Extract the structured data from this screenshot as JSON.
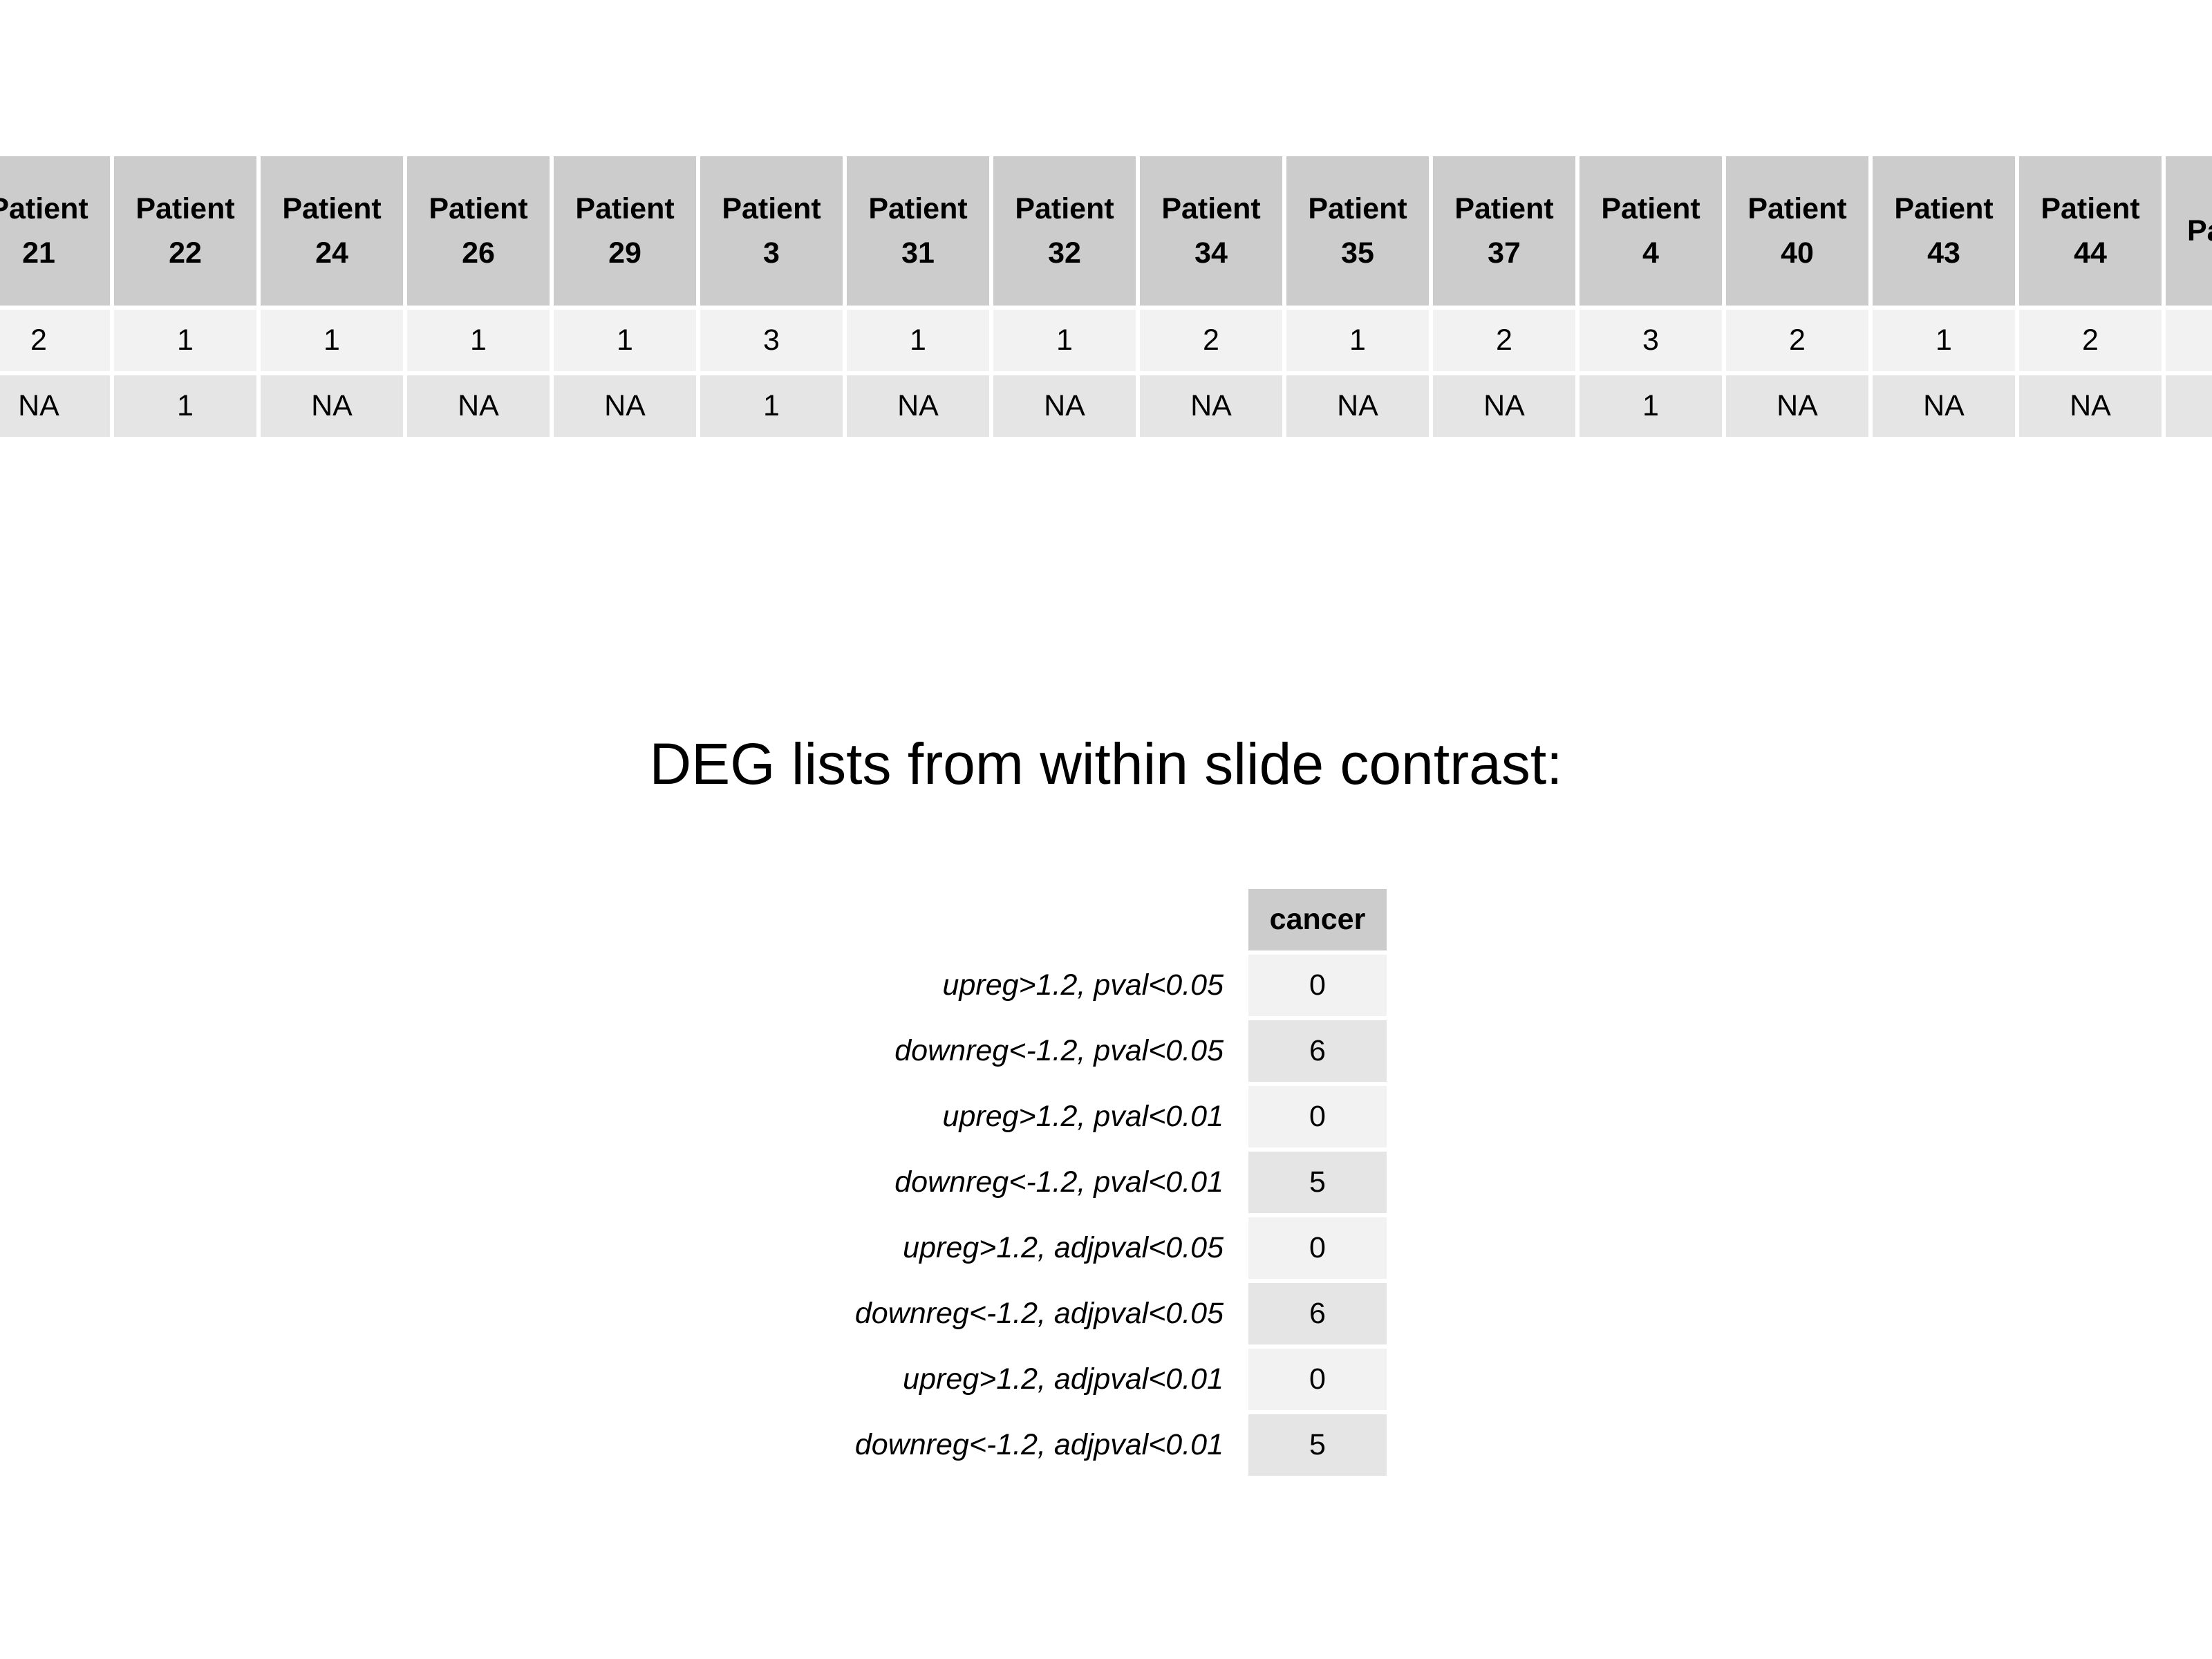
{
  "patients": {
    "columns": [
      {
        "line1": "Patient",
        "line2": "21",
        "row1": "2",
        "row2": "NA"
      },
      {
        "line1": "Patient",
        "line2": "22",
        "row1": "1",
        "row2": "1"
      },
      {
        "line1": "Patient",
        "line2": "24",
        "row1": "1",
        "row2": "NA"
      },
      {
        "line1": "Patient",
        "line2": "26",
        "row1": "1",
        "row2": "NA"
      },
      {
        "line1": "Patient",
        "line2": "29",
        "row1": "1",
        "row2": "NA"
      },
      {
        "line1": "Patient",
        "line2": "3",
        "row1": "3",
        "row2": "1"
      },
      {
        "line1": "Patient",
        "line2": "31",
        "row1": "1",
        "row2": "NA"
      },
      {
        "line1": "Patient",
        "line2": "32",
        "row1": "1",
        "row2": "NA"
      },
      {
        "line1": "Patient",
        "line2": "34",
        "row1": "2",
        "row2": "NA"
      },
      {
        "line1": "Patient",
        "line2": "35",
        "row1": "1",
        "row2": "NA"
      },
      {
        "line1": "Patient",
        "line2": "37",
        "row1": "2",
        "row2": "NA"
      },
      {
        "line1": "Patient",
        "line2": "4",
        "row1": "3",
        "row2": "1"
      },
      {
        "line1": "Patient",
        "line2": "40",
        "row1": "2",
        "row2": "NA"
      },
      {
        "line1": "Patient",
        "line2": "43",
        "row1": "1",
        "row2": "NA"
      },
      {
        "line1": "Patient",
        "line2": "44",
        "row1": "2",
        "row2": "NA"
      },
      {
        "line1": "Pa",
        "line2": "",
        "row1": "",
        "row2": ""
      }
    ]
  },
  "deg": {
    "title": "DEG lists from within slide contrast:",
    "column_header": "cancer",
    "rows": [
      {
        "label": "upreg>1.2, pval<0.05",
        "value": "0"
      },
      {
        "label": "downreg<-1.2, pval<0.05",
        "value": "6"
      },
      {
        "label": "upreg>1.2, pval<0.01",
        "value": "0"
      },
      {
        "label": "downreg<-1.2, pval<0.01",
        "value": "5"
      },
      {
        "label": "upreg>1.2, adjpval<0.05",
        "value": "0"
      },
      {
        "label": "downreg<-1.2, adjpval<0.05",
        "value": "6"
      },
      {
        "label": "upreg>1.2, adjpval<0.01",
        "value": "0"
      },
      {
        "label": "downreg<-1.2, adjpval<0.01",
        "value": "5"
      }
    ]
  }
}
